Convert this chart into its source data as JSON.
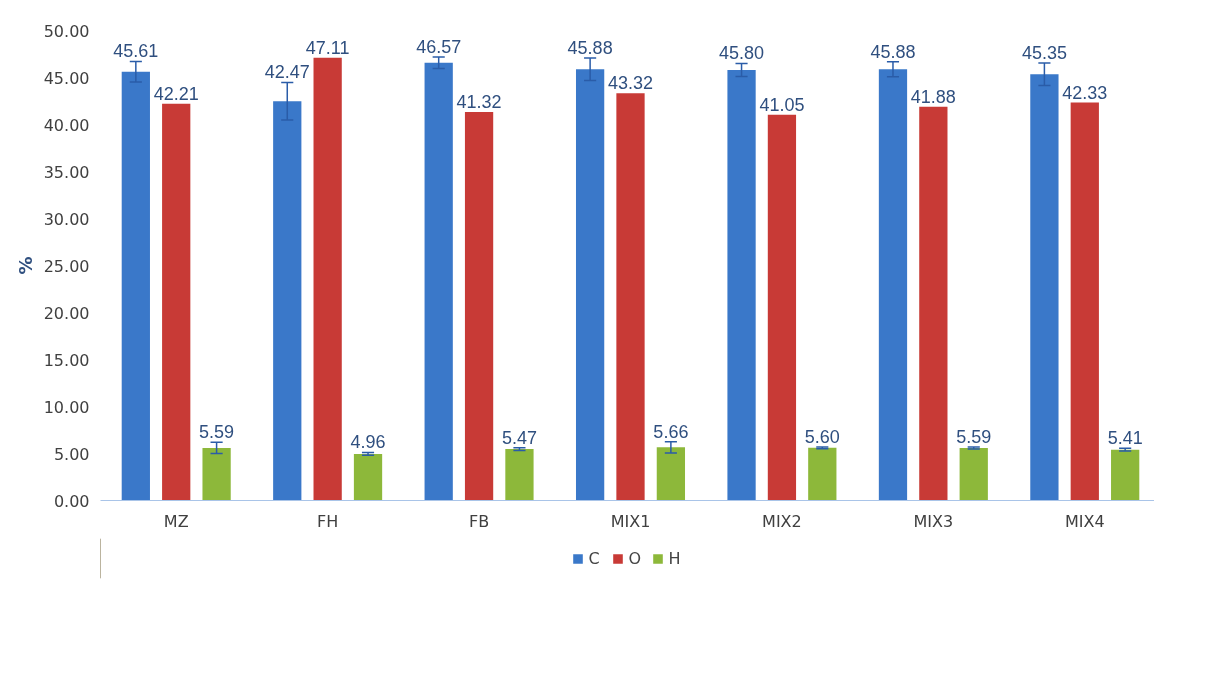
{
  "chart_data": {
    "type": "bar",
    "ylabel": "%",
    "categories": [
      "MZ",
      "FH",
      "FB",
      "MIX1",
      "MIX2",
      "MIX3",
      "MIX4"
    ],
    "ylim": [
      0,
      50
    ],
    "yticks": [
      {
        "value": 0,
        "label": "0.00"
      },
      {
        "value": 5,
        "label": "5.00"
      },
      {
        "value": 10,
        "label": "10.00"
      },
      {
        "value": 15,
        "label": "15.00"
      },
      {
        "value": 20,
        "label": "20.00"
      },
      {
        "value": 25,
        "label": "25.00"
      },
      {
        "value": 30,
        "label": "30.00"
      },
      {
        "value": 35,
        "label": "35.00"
      },
      {
        "value": 40,
        "label": "40.00"
      },
      {
        "value": 45,
        "label": "45.00"
      },
      {
        "value": 50,
        "label": "50.00"
      }
    ],
    "series": [
      {
        "name": "C",
        "color": "#3a78c9",
        "values": [
          45.61,
          42.47,
          46.57,
          45.88,
          45.8,
          45.88,
          45.35
        ],
        "errors": [
          1.1,
          2.0,
          0.6,
          1.2,
          0.7,
          0.8,
          1.2
        ],
        "value_labels": [
          "45.61",
          "42.47",
          "46.57",
          "45.88",
          "45.80",
          "45.88",
          "45.35"
        ]
      },
      {
        "name": "O",
        "color": "#c83a36",
        "values": [
          42.21,
          47.11,
          41.32,
          43.32,
          41.05,
          41.88,
          42.33
        ],
        "value_labels": [
          "42.21",
          "47.11",
          "41.32",
          "43.32",
          "41.05",
          "41.88",
          "42.33"
        ]
      },
      {
        "name": "H",
        "color": "#8db83a",
        "values": [
          5.59,
          4.96,
          5.47,
          5.66,
          5.6,
          5.59,
          5.41
        ],
        "errors": [
          0.6,
          0.15,
          0.15,
          0.6,
          0.1,
          0.1,
          0.15
        ],
        "value_labels": [
          "5.59",
          "4.96",
          "5.47",
          "5.66",
          "5.60",
          "5.59",
          "5.41"
        ]
      }
    ],
    "legend": "bottom",
    "grid": false
  }
}
